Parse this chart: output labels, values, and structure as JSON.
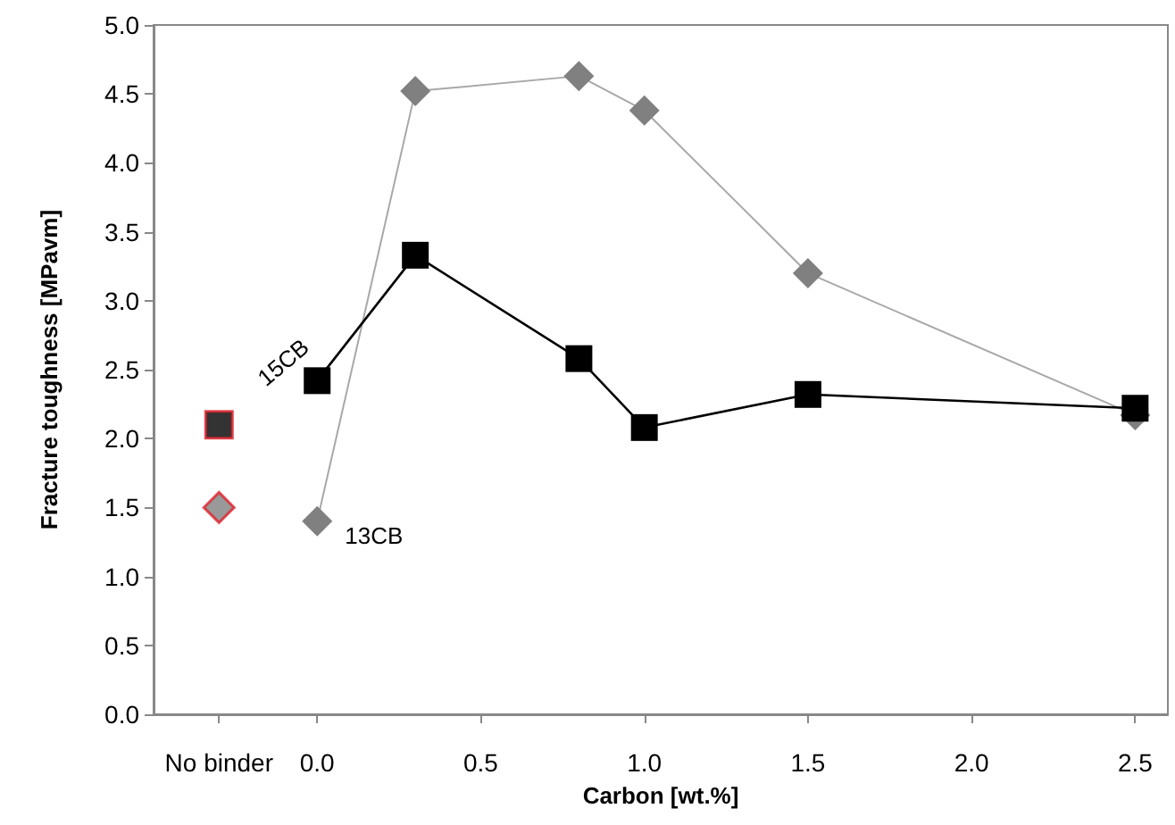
{
  "chart_data": {
    "type": "line",
    "xlabel": "Carbon [wt.%]",
    "ylabel": "Fracture toughness [MPavm]",
    "xlim": [
      -0.5,
      2.6
    ],
    "xticks": [
      {
        "value": -0.3,
        "label": "No binder"
      },
      {
        "value": 0,
        "label": "0.0"
      },
      0.5,
      {
        "value": 1,
        "label": "1.0"
      },
      1.5,
      {
        "value": 2,
        "label": "2.0"
      },
      2.5
    ],
    "ylim": [
      0,
      5
    ],
    "yticks": [
      {
        "value": 0,
        "label": "0.0"
      },
      0.5,
      {
        "value": 1,
        "label": "1.0"
      },
      1.5,
      {
        "value": 2,
        "label": "2.0"
      },
      2.5,
      {
        "value": 3,
        "label": "3.0"
      },
      3.5,
      {
        "value": 4,
        "label": "4.0"
      },
      4.5,
      {
        "value": 5,
        "label": "5.0"
      }
    ],
    "grid": false,
    "legend": false,
    "series": [
      {
        "name": "15CB",
        "type": "line",
        "color": "#000000",
        "marker": "square",
        "x": [
          0,
          0.3,
          0.8,
          1.0,
          1.5,
          2.5
        ],
        "values": [
          2.42,
          3.33,
          2.58,
          2.08,
          2.32,
          2.22
        ]
      },
      {
        "name": "13CB",
        "type": "line",
        "color": "#808080",
        "marker": "diamond",
        "x": [
          0,
          0.3,
          0.8,
          1.0,
          1.5,
          2.5
        ],
        "values": [
          1.4,
          4.52,
          4.63,
          4.38,
          3.2,
          2.17
        ]
      },
      {
        "type": "scatter",
        "color": "#000000",
        "marker": "square",
        "x": [
          -0.3
        ],
        "values": [
          2.1
        ]
      },
      {
        "type": "scatter",
        "color": "#808080",
        "marker": "diamond",
        "x": [
          -0.3
        ],
        "values": [
          1.5
        ]
      }
    ]
  }
}
